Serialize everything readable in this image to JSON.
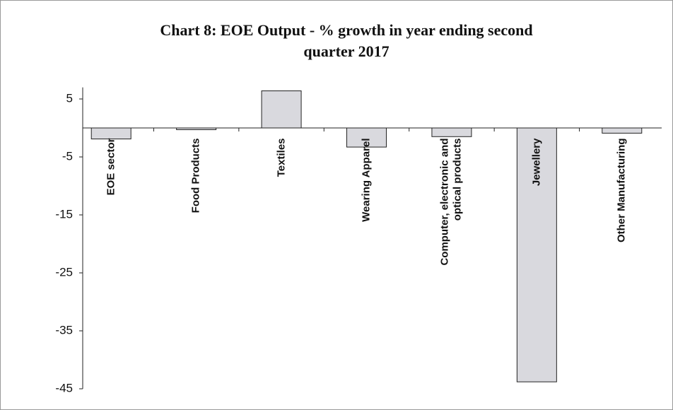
{
  "chart_data": {
    "type": "bar",
    "title": "Chart 8: EOE Output - % growth in year ending second quarter 2017",
    "categories": [
      "EOE sector",
      "Food Products",
      "Textiles",
      "Wearing Apparel",
      "Computer, electronic and optical products",
      "Jewellery",
      "Other Manufacturing"
    ],
    "values": [
      -1.9,
      -0.3,
      6.4,
      -3.3,
      -1.5,
      -43.8,
      -0.9
    ],
    "color": "#d9d9de",
    "ylim": [
      -45,
      7
    ],
    "yticks": [
      5,
      -5,
      -15,
      -25,
      -35,
      -45
    ],
    "grid": false
  }
}
